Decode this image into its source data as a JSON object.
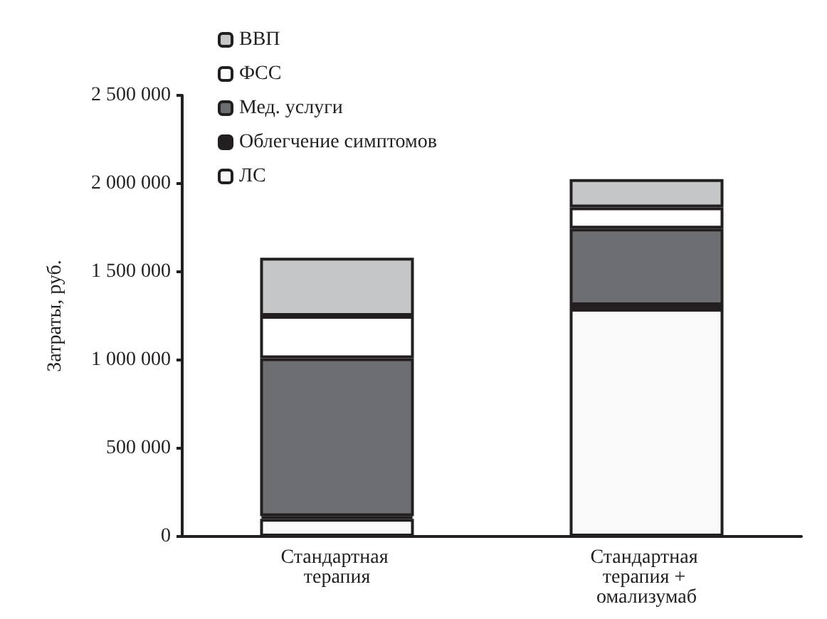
{
  "chart_data": {
    "type": "bar",
    "stacked": true,
    "ylabel": "Затраты, руб.",
    "categories": [
      "Стандартная терапия",
      "Стандартная терапия + омализумаб"
    ],
    "series": [
      {
        "name": "ЛС",
        "color": "#f9f9f9",
        "values": [
          100000,
          1290000
        ]
      },
      {
        "name": "Облегчение симптомов",
        "color": "#231f20",
        "values": [
          15000,
          20000
        ]
      },
      {
        "name": "Мед. услуги",
        "color": "#6d6e71",
        "values": [
          895000,
          435000
        ]
      },
      {
        "name": "ФСС",
        "color": "#ffffff",
        "values": [
          240000,
          120000
        ]
      },
      {
        "name": "ВВП",
        "color": "#c5c6c8",
        "values": [
          330000,
          160000
        ]
      }
    ],
    "ylim": [
      0,
      2500000
    ],
    "yticks": [
      {
        "value": 0,
        "label": "0"
      },
      {
        "value": 500000,
        "label": "500 000"
      },
      {
        "value": 1000000,
        "label": "1 000 000"
      },
      {
        "value": 1500000,
        "label": "1 500 000"
      },
      {
        "value": 2000000,
        "label": "2 000 000"
      },
      {
        "value": 2500000,
        "label": "2 500 000"
      }
    ],
    "grid": false,
    "legend": "top left"
  }
}
